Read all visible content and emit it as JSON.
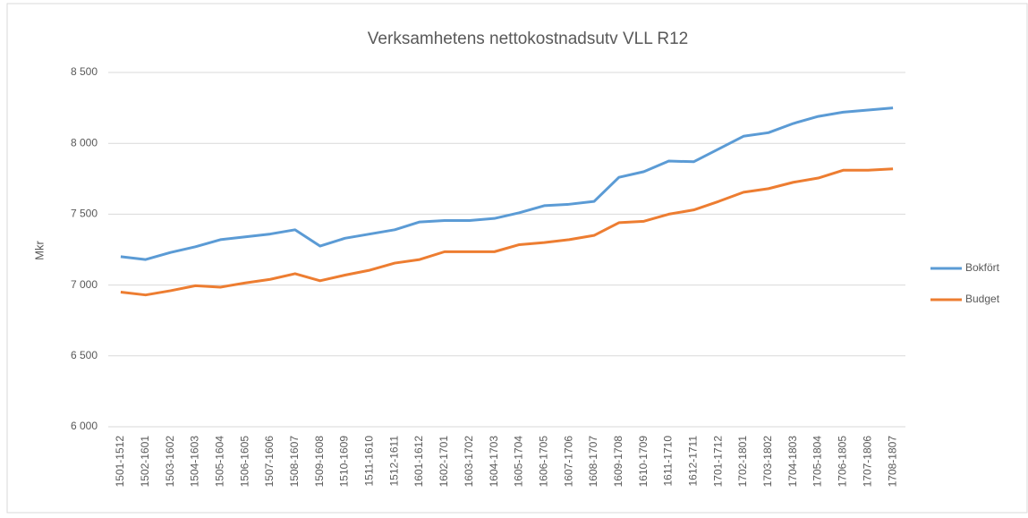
{
  "chart_data": {
    "type": "line",
    "title": "Verksamhetens nettokostnadsutv VLL R12",
    "y_label": "Mkr",
    "categories": [
      "1501-1512",
      "1502-1601",
      "1503-1602",
      "1504-1603",
      "1505-1604",
      "1506-1605",
      "1507-1606",
      "1508-1607",
      "1509-1608",
      "1510-1609",
      "1511-1610",
      "1512-1611",
      "1601-1612",
      "1602-1701",
      "1603-1702",
      "1604-1703",
      "1605-1704",
      "1606-1705",
      "1607-1706",
      "1608-1707",
      "1609-1708",
      "1610-1709",
      "1611-1710",
      "1612-1711",
      "1701-1712",
      "1702-1801",
      "1703-1802",
      "1704-1803",
      "1705-1804",
      "1706-1805",
      "1707-1806",
      "1708-1807"
    ],
    "series": [
      {
        "name": "Bokfört",
        "color": "#5b9bd5",
        "values": [
          7200,
          7180,
          7230,
          7270,
          7320,
          7340,
          7360,
          7390,
          7275,
          7330,
          7360,
          7390,
          7445,
          7455,
          7455,
          7470,
          7510,
          7560,
          7570,
          7590,
          7760,
          7800,
          7875,
          7870,
          7960,
          8050,
          8075,
          8140,
          8190,
          8220,
          8235,
          8250
        ]
      },
      {
        "name": "Budget",
        "color": "#ed7d31",
        "values": [
          6950,
          6930,
          6960,
          6995,
          6985,
          7015,
          7040,
          7080,
          7030,
          7070,
          7105,
          7155,
          7180,
          7235,
          7235,
          7235,
          7285,
          7300,
          7320,
          7350,
          7440,
          7450,
          7500,
          7530,
          7590,
          7655,
          7680,
          7725,
          7755,
          7810,
          7810,
          7820
        ]
      }
    ],
    "ylim": [
      6000,
      8500
    ],
    "yticks": [
      {
        "value": 6000,
        "label": "6 000"
      },
      {
        "value": 6500,
        "label": "6 500"
      },
      {
        "value": 7000,
        "label": "7 000"
      },
      {
        "value": 7500,
        "label": "7 500"
      },
      {
        "value": 8000,
        "label": "8 000"
      },
      {
        "value": 8500,
        "label": "8 500"
      }
    ],
    "grid": true,
    "legend": "right"
  }
}
